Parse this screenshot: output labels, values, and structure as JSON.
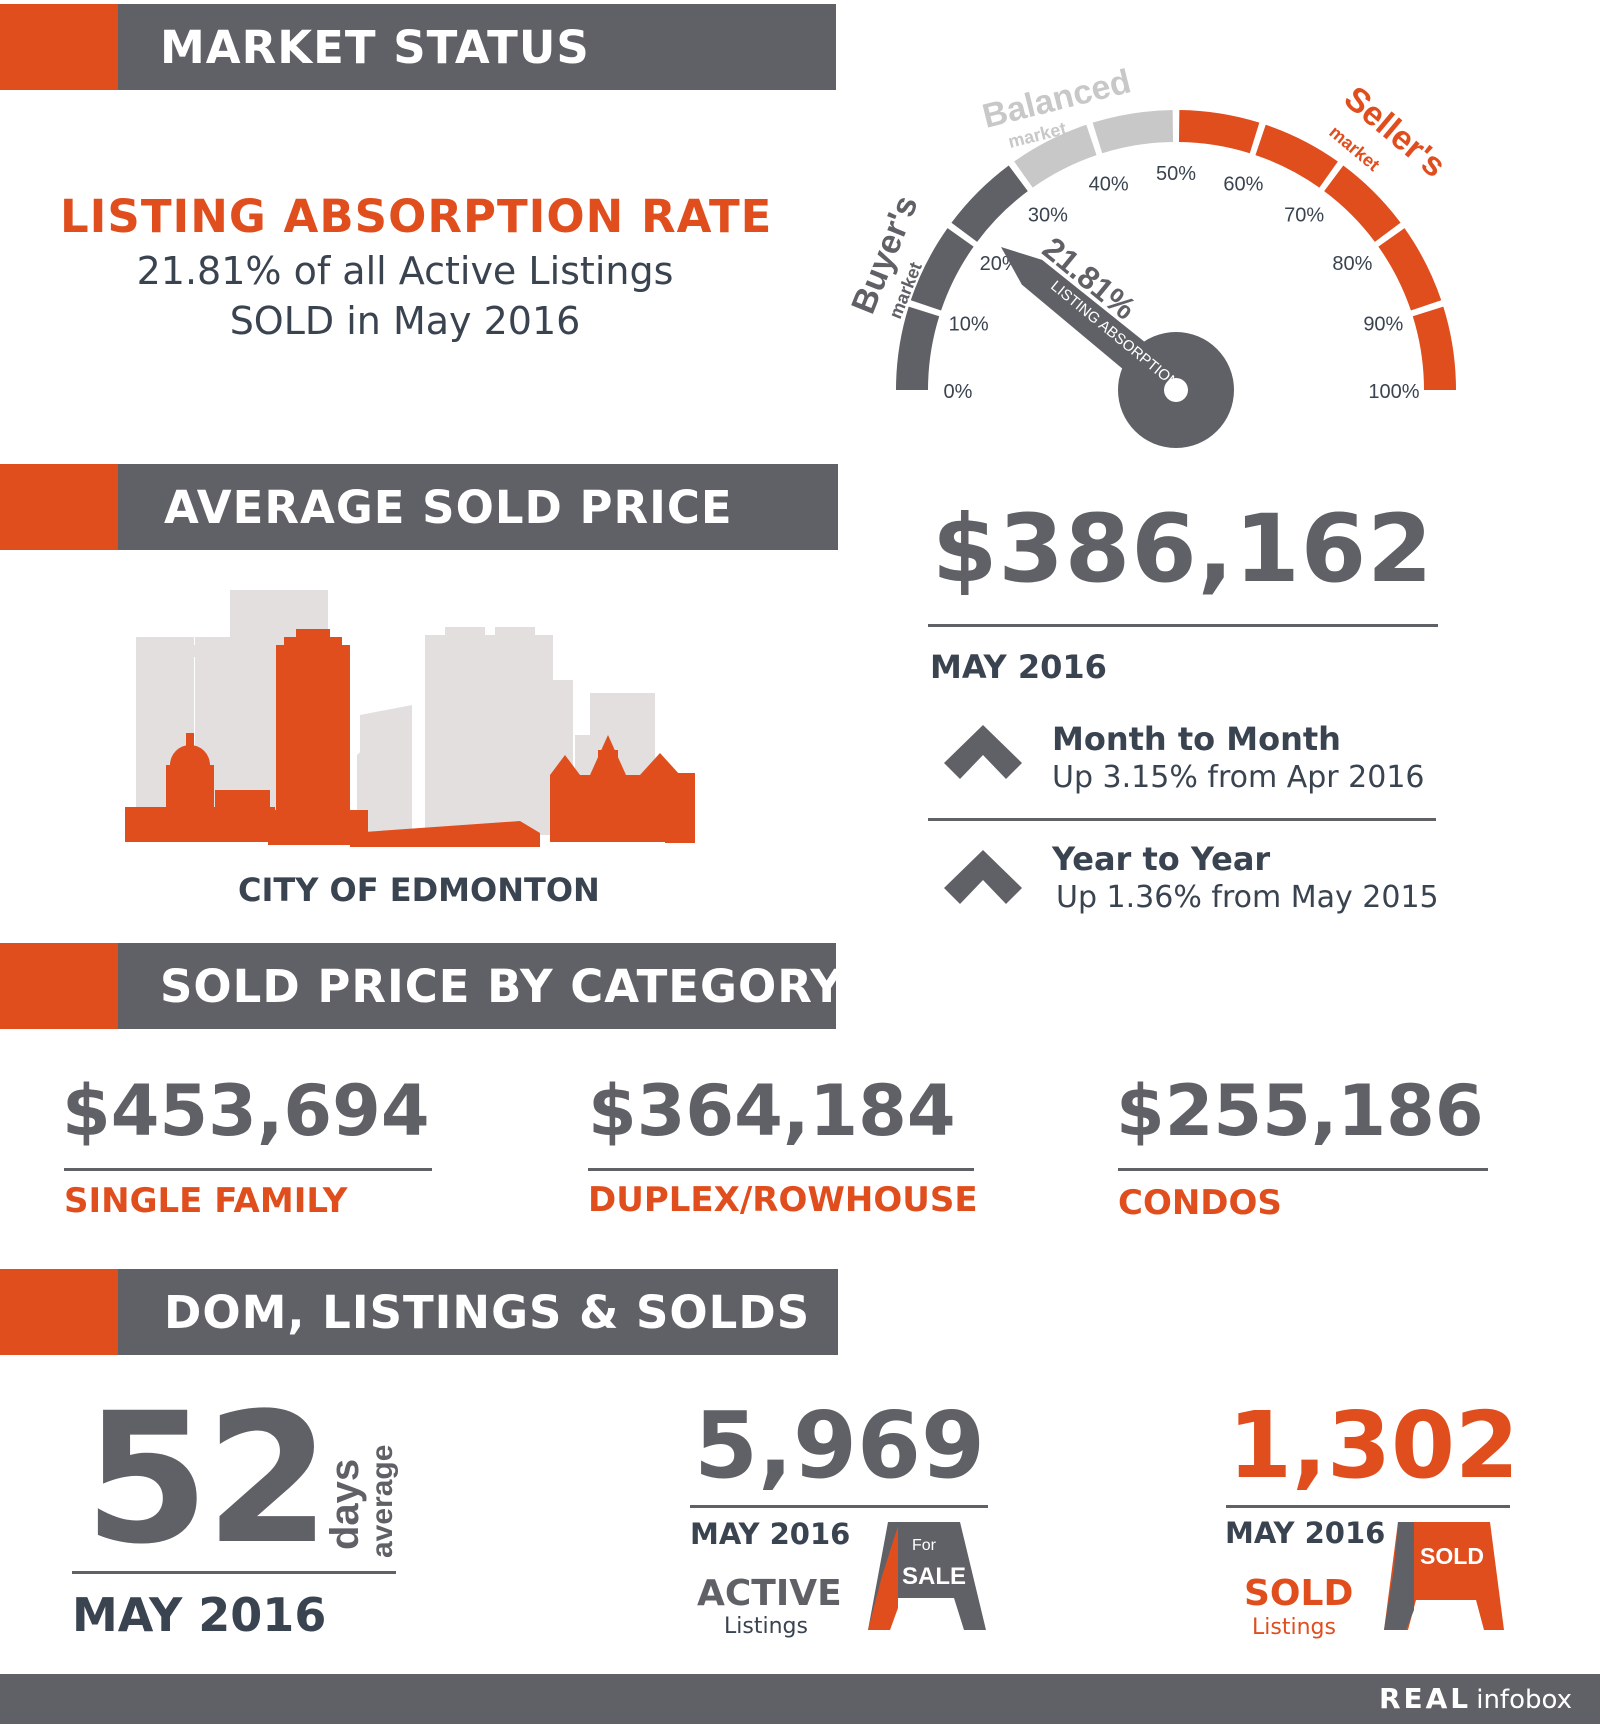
{
  "sections": {
    "market_status": "MARKET STATUS",
    "average_sold_price": "AVERAGE SOLD PRICE",
    "sold_by_category": "SOLD PRICE BY CATEGORY",
    "dom": "DOM, LISTINGS & SOLDS"
  },
  "absorption": {
    "title": "LISTING ABSORPTION RATE",
    "line1": "21.81% of all Active Listings",
    "line2": "SOLD in May 2016",
    "gauge_value": "21.81%",
    "gauge_label": "LISTING ABSORPTION",
    "gauge_percent": 21.81,
    "buyers_title": "Buyer's",
    "balanced_title": "Balanced",
    "sellers_title": "Seller's",
    "market_word": "market",
    "ticks": [
      "0%",
      "10%",
      "20%",
      "30%",
      "40%",
      "50%",
      "60%",
      "70%",
      "80%",
      "90%",
      "100%"
    ]
  },
  "average": {
    "price": "$386,162",
    "period": "MAY 2016",
    "city": "CITY OF EDMONTON",
    "mtm_title": "Month to Month",
    "mtm_text": "Up 3.15% from Apr 2016",
    "yty_title": "Year to Year",
    "yty_text": "Up 1.36% from May 2015"
  },
  "categories": [
    {
      "value": "$453,694",
      "label": "SINGLE FAMILY"
    },
    {
      "value": "$364,184",
      "label": "DUPLEX/ROWHOUSE"
    },
    {
      "value": "$255,186",
      "label": "CONDOS"
    }
  ],
  "dom": {
    "days": "52",
    "days_word": "days",
    "avg_word": "average",
    "period": "MAY 2016",
    "active_count": "5,969",
    "active_period": "MAY 2016",
    "active_title": "ACTIVE",
    "active_sub": "Listings",
    "sign_for": "For",
    "sign_sale": "SALE",
    "sold_count": "1,302",
    "sold_period": "MAY 2016",
    "sold_title": "SOLD",
    "sold_sub": "Listings",
    "sign_sold": "SOLD"
  },
  "footer": {
    "brand_real": "REAL",
    "brand_info": "infobox"
  },
  "colors": {
    "orange": "#e04e1e",
    "gray": "#5f6166",
    "light_gray": "#c8c8c8",
    "navy": "#3a4350"
  }
}
